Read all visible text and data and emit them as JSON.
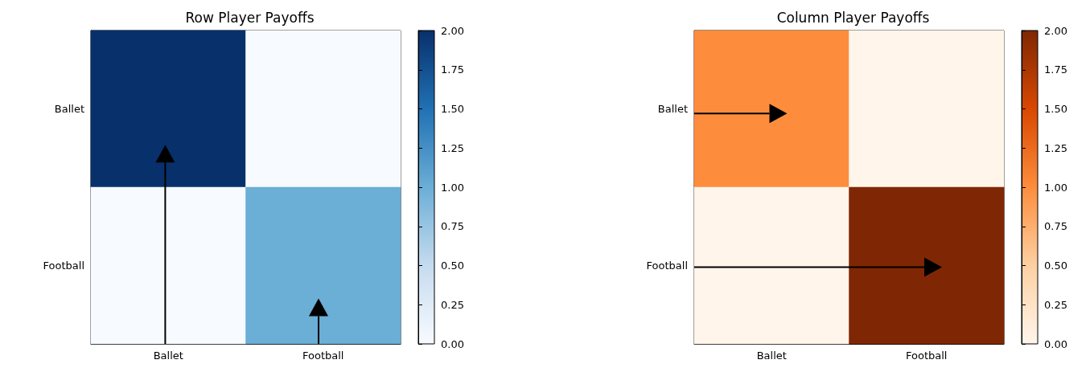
{
  "chart_data": [
    {
      "type": "heatmap",
      "title": "Row Player Payoffs",
      "categories": [
        "Ballet",
        "Football"
      ],
      "y_categories": [
        "Ballet",
        "Football"
      ],
      "cells": [
        [
          2,
          0
        ],
        [
          0,
          1
        ]
      ],
      "colors": [
        "#f7fbff",
        "#c6dbef",
        "#6baed6",
        "#2171b5",
        "#08306b"
      ],
      "clim": [
        0,
        2
      ],
      "cticks": [
        {
          "value": 0,
          "label": "0.00"
        },
        {
          "value": 0.25,
          "label": "0.25"
        },
        {
          "value": 0.5,
          "label": "0.50"
        },
        {
          "value": 0.75,
          "label": "0.75"
        },
        {
          "value": 1,
          "label": "1.00"
        },
        {
          "value": 1.25,
          "label": "1.25"
        },
        {
          "value": 1.5,
          "label": "1.50"
        },
        {
          "value": 1.75,
          "label": "1.75"
        },
        {
          "value": 2,
          "label": "2.00"
        }
      ]
    },
    {
      "type": "heatmap",
      "title": "Column Player Payoffs",
      "categories": [
        "Ballet",
        "Football"
      ],
      "y_categories": [
        "Ballet",
        "Football"
      ],
      "cells": [
        [
          1,
          0
        ],
        [
          0,
          2
        ]
      ],
      "colors": [
        "#fff5eb",
        "#fdd0a2",
        "#fd8d3c",
        "#d94801",
        "#7f2704"
      ],
      "clim": [
        0,
        2
      ],
      "cticks": [
        {
          "value": 0,
          "label": "0.00"
        },
        {
          "value": 0.25,
          "label": "0.25"
        },
        {
          "value": 0.5,
          "label": "0.50"
        },
        {
          "value": 0.75,
          "label": "0.75"
        },
        {
          "value": 1,
          "label": "1.00"
        },
        {
          "value": 1.25,
          "label": "1.25"
        },
        {
          "value": 1.5,
          "label": "1.50"
        },
        {
          "value": 1.75,
          "label": "1.75"
        },
        {
          "value": 2,
          "label": "2.00"
        }
      ]
    }
  ]
}
